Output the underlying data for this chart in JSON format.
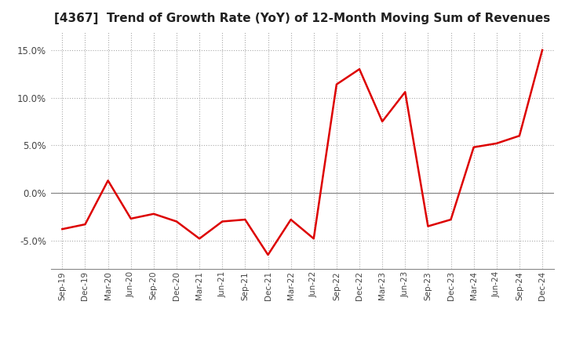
{
  "title": "[4367]  Trend of Growth Rate (YoY) of 12-Month Moving Sum of Revenues",
  "title_fontsize": 11,
  "line_color": "#dd0000",
  "background_color": "#ffffff",
  "grid_color": "#aaaaaa",
  "ylim": [
    -0.08,
    0.17
  ],
  "yticks": [
    -0.05,
    0.0,
    0.05,
    0.1,
    0.15
  ],
  "ytick_labels": [
    "-5.0%",
    "0.0%",
    "5.0%",
    "10.0%",
    "15.0%"
  ],
  "x_labels": [
    "Sep-19",
    "Dec-19",
    "Mar-20",
    "Jun-20",
    "Sep-20",
    "Dec-20",
    "Mar-21",
    "Jun-21",
    "Sep-21",
    "Dec-21",
    "Mar-22",
    "Jun-22",
    "Sep-22",
    "Dec-22",
    "Mar-23",
    "Jun-23",
    "Sep-23",
    "Dec-23",
    "Mar-24",
    "Jun-24",
    "Sep-24",
    "Dec-24"
  ],
  "data": {
    "Sep-19": -0.038,
    "Dec-19": -0.033,
    "Mar-20": 0.013,
    "Jun-20": -0.027,
    "Sep-20": -0.022,
    "Dec-20": -0.03,
    "Mar-21": -0.048,
    "Jun-21": -0.03,
    "Sep-21": -0.028,
    "Dec-21": -0.065,
    "Mar-22": -0.028,
    "Jun-22": -0.048,
    "Sep-22": 0.114,
    "Dec-22": 0.13,
    "Mar-23": 0.075,
    "Jun-23": 0.106,
    "Sep-23": -0.035,
    "Dec-23": -0.028,
    "Mar-24": 0.048,
    "Jun-24": 0.052,
    "Sep-24": 0.06,
    "Dec-24": 0.15
  }
}
